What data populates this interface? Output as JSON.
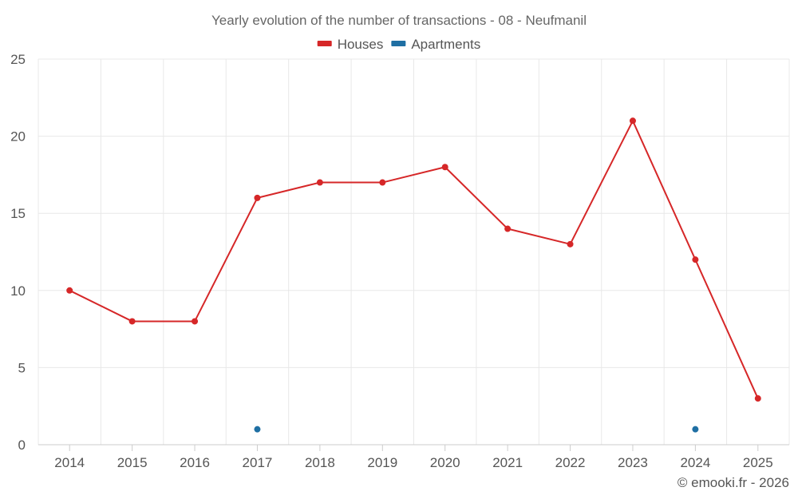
{
  "chart_data": {
    "type": "line",
    "title": "Yearly evolution of the number of transactions - 08 - Neufmanil",
    "categories": [
      "2014",
      "2015",
      "2016",
      "2017",
      "2018",
      "2019",
      "2020",
      "2021",
      "2022",
      "2023",
      "2024",
      "2025"
    ],
    "series": [
      {
        "name": "Houses",
        "color": "#d62728",
        "values": [
          10,
          8,
          8,
          16,
          17,
          17,
          18,
          14,
          13,
          21,
          12,
          3
        ]
      },
      {
        "name": "Apartments",
        "color": "#1f6fa3",
        "values": [
          null,
          null,
          null,
          1,
          null,
          null,
          null,
          null,
          null,
          null,
          1,
          null
        ]
      }
    ],
    "ylim": [
      0,
      25
    ],
    "yticks": [
      0,
      5,
      10,
      15,
      20,
      25
    ],
    "xlabel": "",
    "ylabel": "",
    "grid": true,
    "legend_position": "top-center"
  },
  "credit": "© emooki.fr - 2026"
}
